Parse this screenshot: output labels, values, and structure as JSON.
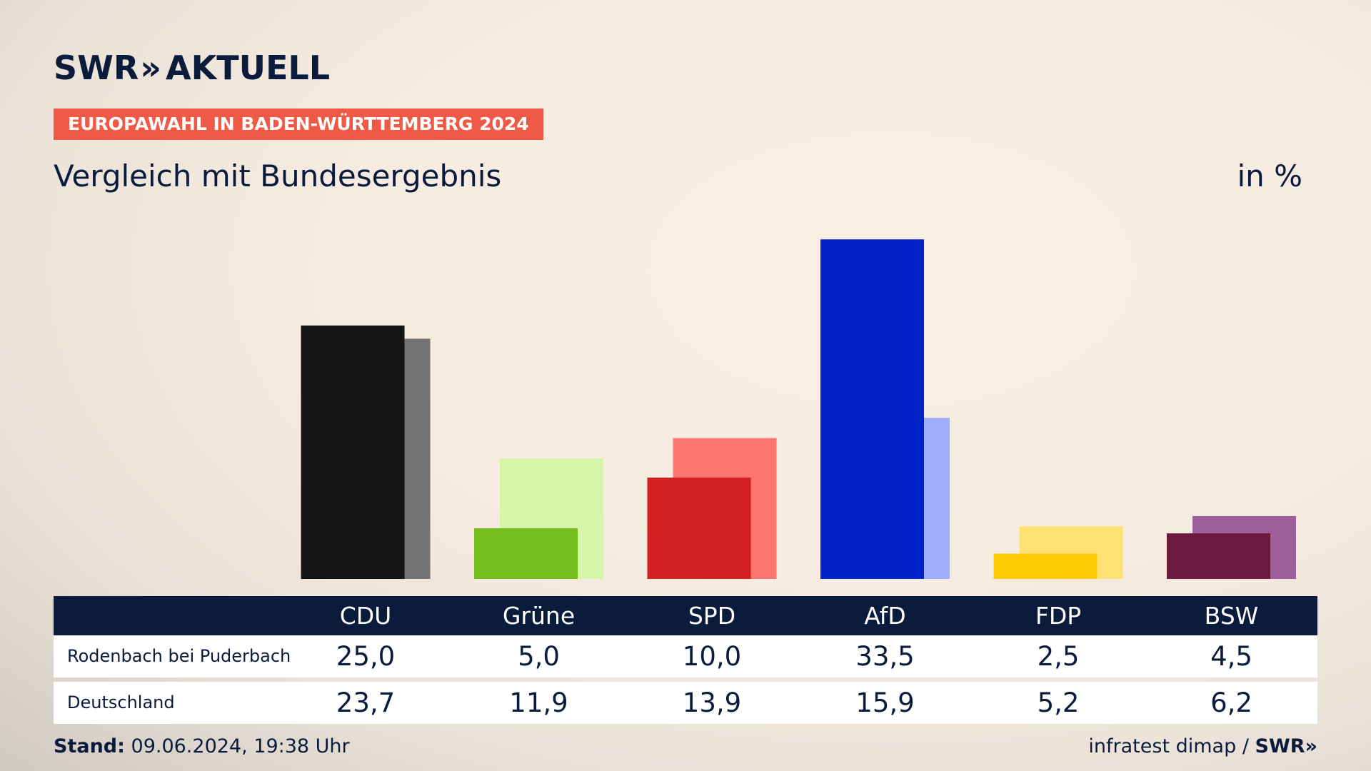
{
  "header": {
    "logo_text": "SWR",
    "logo_chevron": "»",
    "logo_suffix": "AKTUELL",
    "tag": "EUROPAWAHL IN BADEN-WÜRTTEMBERG 2024",
    "subtitle": "Vergleich mit Bundesergebnis",
    "unit": "in %"
  },
  "chart_data": {
    "type": "bar",
    "categories": [
      "CDU",
      "Grüne",
      "SPD",
      "AfD",
      "FDP",
      "BSW"
    ],
    "series": [
      {
        "name": "Rodenbach bei Puderbach",
        "values": [
          25.0,
          5.0,
          10.0,
          33.5,
          2.5,
          4.5
        ],
        "value_labels": [
          "25,0",
          "5,0",
          "10,0",
          "33,5",
          "2,5",
          "4,5"
        ],
        "colors": [
          "#141414",
          "#76be1d",
          "#d42020",
          "#0022c8",
          "#ffcb05",
          "#6b1a40"
        ]
      },
      {
        "name": "Deutschland",
        "values": [
          23.7,
          11.9,
          13.9,
          15.9,
          5.2,
          6.2
        ],
        "value_labels": [
          "23,7",
          "11,9",
          "13,9",
          "15,9",
          "5,2",
          "6,2"
        ],
        "colors": [
          "#747371",
          "#d5f5a8",
          "#ff7570",
          "#9eaefd",
          "#ffe273",
          "#9c5f9a"
        ]
      }
    ],
    "ylim": [
      0,
      35
    ],
    "grid": false,
    "legend": "table"
  },
  "footer": {
    "stand_label": "Stand:",
    "stand_value": "09.06.2024, 19:38 Uhr",
    "source": "infratest dimap /",
    "source_brand": "SWR»"
  }
}
